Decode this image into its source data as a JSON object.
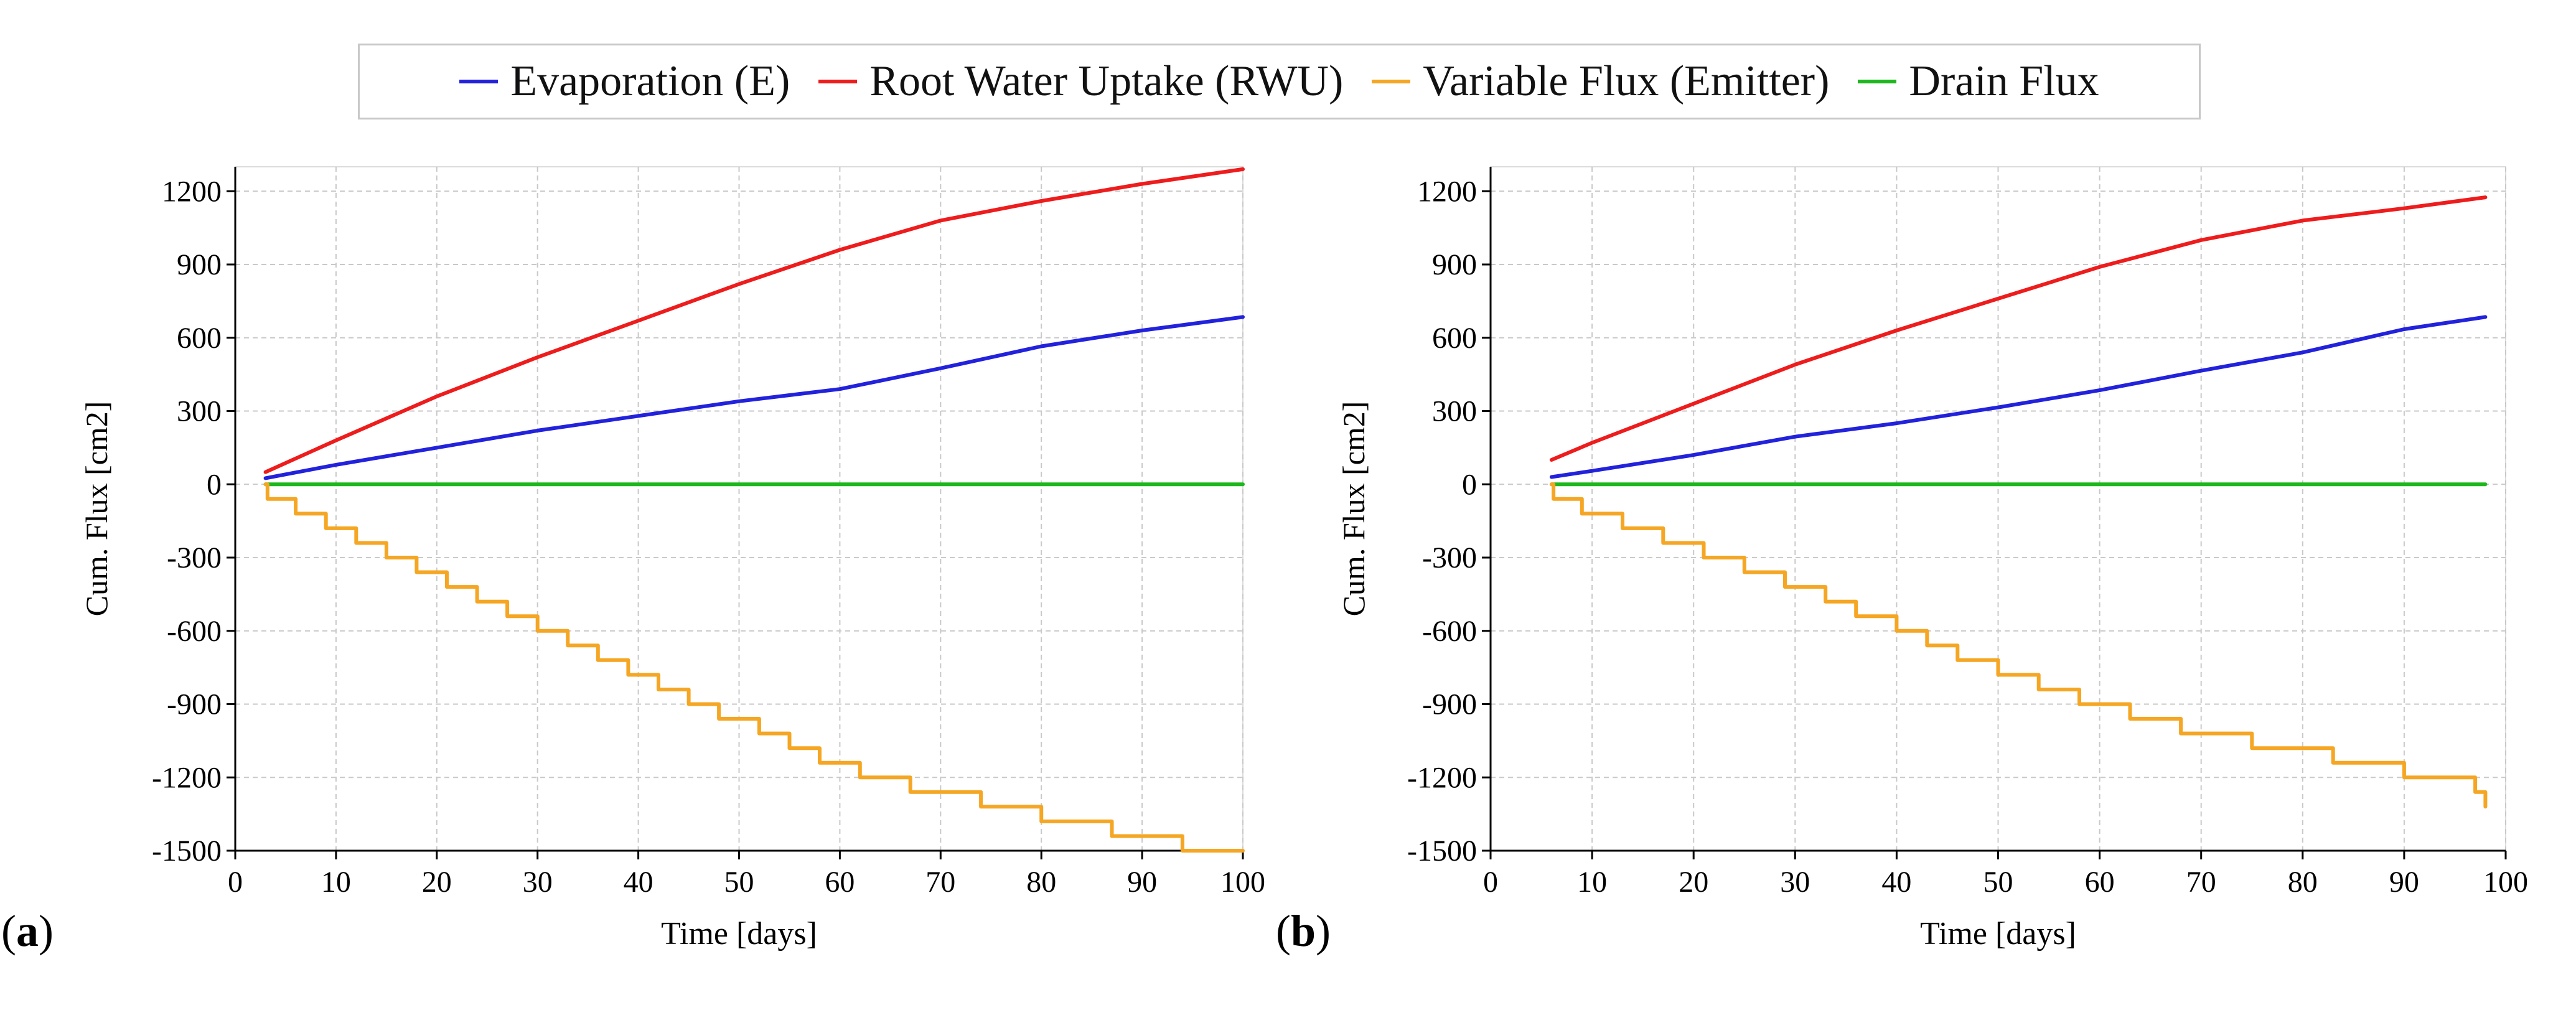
{
  "legend": {
    "items": [
      {
        "label": "Evaporation (E)",
        "color": "#2222dd"
      },
      {
        "label": "Root Water Uptake (RWU)",
        "color": "#ee1c1c"
      },
      {
        "label": "Variable Flux (Emitter)",
        "color": "#f5a623"
      },
      {
        "label": "Drain Flux",
        "color": "#1eb81e"
      }
    ]
  },
  "panels": [
    {
      "open": "(",
      "letter": "a",
      "close": ")"
    },
    {
      "open": "(",
      "letter": "b",
      "close": ")"
    }
  ],
  "chart_data": [
    {
      "type": "line",
      "panel": "a",
      "xlabel": "Time [days]",
      "ylabel": "Cum. Flux [cm2]",
      "xlim": [
        0,
        100
      ],
      "ylim": [
        -1500,
        1300
      ],
      "xticks": [
        0,
        10,
        20,
        30,
        40,
        50,
        60,
        70,
        80,
        90,
        100
      ],
      "yticks": [
        -1500,
        -1200,
        -900,
        -600,
        -300,
        0,
        300,
        600,
        900,
        1200
      ],
      "grid": true,
      "series": [
        {
          "name": "Evaporation (E)",
          "color": "#2222dd",
          "step": false,
          "x": [
            3,
            10,
            20,
            30,
            40,
            50,
            60,
            70,
            80,
            90,
            100
          ],
          "y": [
            25,
            80,
            150,
            220,
            280,
            340,
            390,
            475,
            565,
            630,
            685
          ]
        },
        {
          "name": "Root Water Uptake (RWU)",
          "color": "#ee1c1c",
          "step": false,
          "x": [
            3,
            10,
            20,
            30,
            40,
            50,
            60,
            70,
            80,
            90,
            100
          ],
          "y": [
            50,
            180,
            360,
            520,
            670,
            820,
            960,
            1080,
            1160,
            1230,
            1290
          ]
        },
        {
          "name": "Variable Flux (Emitter)",
          "color": "#f5a623",
          "step": true,
          "x": [
            3,
            3.2,
            6,
            9,
            12,
            15,
            18,
            21,
            24,
            27,
            30,
            33,
            36,
            39,
            42,
            45,
            48,
            52,
            55,
            58,
            62,
            67,
            74,
            80,
            87,
            94,
            100
          ],
          "y": [
            0,
            -60,
            -120,
            -180,
            -240,
            -300,
            -360,
            -420,
            -480,
            -540,
            -600,
            -660,
            -720,
            -780,
            -840,
            -900,
            -960,
            -1020,
            -1080,
            -1140,
            -1200,
            -1260,
            -1320,
            -1380,
            -1440,
            -1500,
            -1500
          ]
        },
        {
          "name": "Drain Flux",
          "color": "#1eb81e",
          "step": false,
          "x": [
            3,
            100
          ],
          "y": [
            0,
            0
          ]
        }
      ]
    },
    {
      "type": "line",
      "panel": "b",
      "xlabel": "Time [days]",
      "ylabel": "Cum. Flux [cm2]",
      "xlim": [
        0,
        100
      ],
      "ylim": [
        -1500,
        1300
      ],
      "xticks": [
        0,
        10,
        20,
        30,
        40,
        50,
        60,
        70,
        80,
        90,
        100
      ],
      "yticks": [
        -1500,
        -1200,
        -900,
        -600,
        -300,
        0,
        300,
        600,
        900,
        1200
      ],
      "grid": true,
      "series": [
        {
          "name": "Evaporation (E)",
          "color": "#2222dd",
          "step": false,
          "x": [
            6,
            10,
            20,
            30,
            40,
            50,
            60,
            70,
            80,
            90,
            98
          ],
          "y": [
            30,
            55,
            120,
            195,
            250,
            315,
            385,
            465,
            540,
            635,
            685
          ]
        },
        {
          "name": "Root Water Uptake (RWU)",
          "color": "#ee1c1c",
          "step": false,
          "x": [
            6,
            10,
            20,
            30,
            40,
            50,
            60,
            70,
            80,
            90,
            98
          ],
          "y": [
            100,
            170,
            330,
            490,
            630,
            760,
            890,
            1000,
            1080,
            1130,
            1175
          ]
        },
        {
          "name": "Variable Flux (Emitter)",
          "color": "#f5a623",
          "step": true,
          "x": [
            6,
            6.2,
            9,
            13,
            17,
            21,
            25,
            29,
            33,
            36,
            40,
            43,
            46,
            50,
            54,
            58,
            63,
            68,
            75,
            83,
            90,
            97,
            98
          ],
          "y": [
            0,
            -60,
            -120,
            -180,
            -240,
            -300,
            -360,
            -420,
            -480,
            -540,
            -600,
            -660,
            -720,
            -780,
            -840,
            -900,
            -960,
            -1020,
            -1080,
            -1140,
            -1200,
            -1260,
            -1320
          ]
        },
        {
          "name": "Drain Flux",
          "color": "#1eb81e",
          "step": false,
          "x": [
            6,
            98
          ],
          "y": [
            0,
            0
          ]
        }
      ]
    }
  ]
}
